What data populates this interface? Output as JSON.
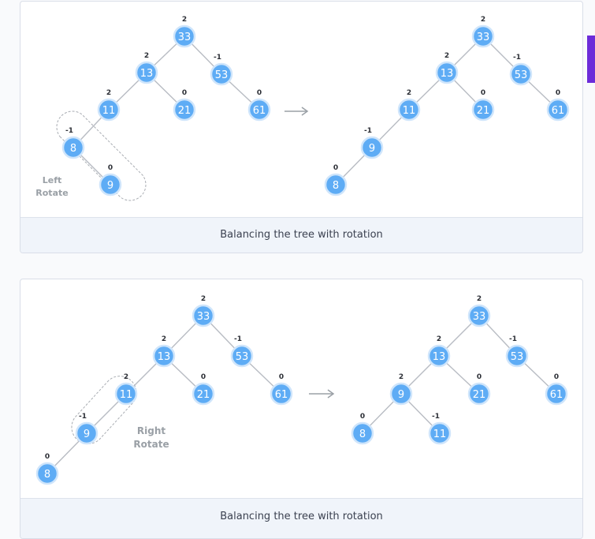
{
  "figures": [
    {
      "caption": "Balancing the tree with rotation",
      "rotation_label": [
        "Left",
        "Rotate"
      ],
      "before": {
        "nodes": [
          {
            "key": "33",
            "bf": "2"
          },
          {
            "key": "13",
            "bf": "2"
          },
          {
            "key": "53",
            "bf": "-1"
          },
          {
            "key": "11",
            "bf": "2"
          },
          {
            "key": "21",
            "bf": "0"
          },
          {
            "key": "61",
            "bf": "0"
          },
          {
            "key": "8",
            "bf": "-1"
          },
          {
            "key": "9",
            "bf": "0"
          }
        ]
      },
      "after": {
        "nodes": [
          {
            "key": "33",
            "bf": "2"
          },
          {
            "key": "13",
            "bf": "2"
          },
          {
            "key": "53",
            "bf": "-1"
          },
          {
            "key": "11",
            "bf": "2"
          },
          {
            "key": "21",
            "bf": "0"
          },
          {
            "key": "61",
            "bf": "0"
          },
          {
            "key": "9",
            "bf": "-1"
          },
          {
            "key": "8",
            "bf": "0"
          }
        ]
      }
    },
    {
      "caption": "Balancing the tree with rotation",
      "rotation_label": [
        "Right",
        "Rotate"
      ],
      "before": {
        "nodes": [
          {
            "key": "33",
            "bf": "2"
          },
          {
            "key": "13",
            "bf": "2"
          },
          {
            "key": "53",
            "bf": "-1"
          },
          {
            "key": "11",
            "bf": "2"
          },
          {
            "key": "21",
            "bf": "0"
          },
          {
            "key": "61",
            "bf": "0"
          },
          {
            "key": "9",
            "bf": "-1"
          },
          {
            "key": "8",
            "bf": "0"
          }
        ]
      },
      "after": {
        "nodes": [
          {
            "key": "33",
            "bf": "2"
          },
          {
            "key": "13",
            "bf": "2"
          },
          {
            "key": "53",
            "bf": "-1"
          },
          {
            "key": "9",
            "bf": "2"
          },
          {
            "key": "21",
            "bf": "0"
          },
          {
            "key": "61",
            "bf": "0"
          },
          {
            "key": "8",
            "bf": "0"
          },
          {
            "key": "11",
            "bf": "-1"
          }
        ]
      }
    }
  ],
  "colors": {
    "node_fill": "#5eacf5",
    "node_stroke": "#cfe5fb",
    "edge": "#b8bcc3",
    "arrow": "#9aa0a6",
    "accent_tab": "#6c2bd9"
  }
}
